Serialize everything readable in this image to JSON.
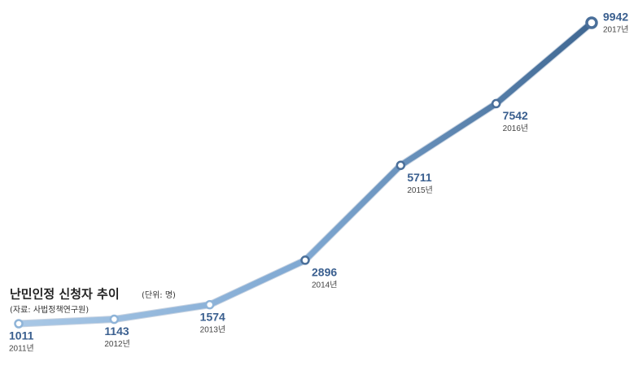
{
  "chart_data": {
    "type": "line",
    "title": "난민인정 신청자 추이",
    "unit": "(단위: 명)",
    "source": "(자료: 사법정책연구원)",
    "categories": [
      "2011년",
      "2012년",
      "2013년",
      "2014년",
      "2015년",
      "2016년",
      "2017년"
    ],
    "values": [
      1011,
      1143,
      1574,
      2896,
      5711,
      7542,
      9942
    ]
  }
}
